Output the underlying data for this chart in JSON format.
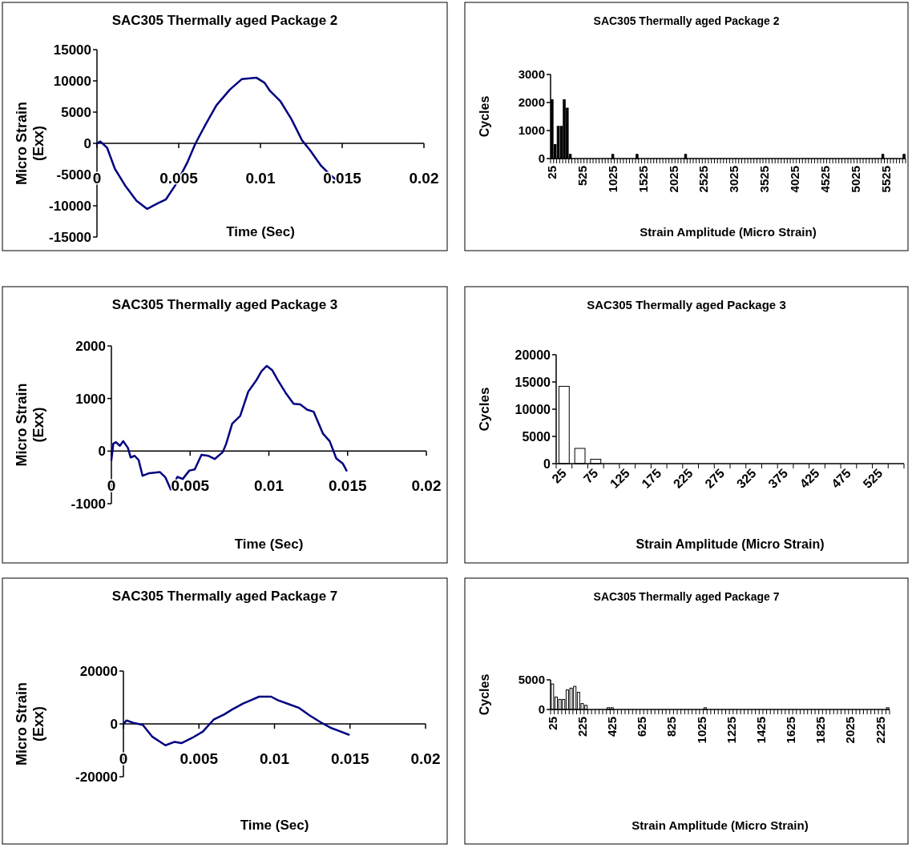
{
  "chart_data": [
    {
      "type": "line",
      "title": "SAC305 Thermally aged Package 2",
      "xlabel": "Time (Sec)",
      "ylabel": "Micro Strain (Exx)",
      "xlim": [
        0,
        0.02
      ],
      "xticks": [
        0,
        0.005,
        0.01,
        0.015,
        0.02
      ],
      "ylim": [
        -15000,
        15000
      ],
      "yticks": [
        -15000,
        -10000,
        -5000,
        0,
        5000,
        10000,
        15000
      ],
      "series": [
        {
          "color": "#000080",
          "x": [
            0,
            0.0002,
            0.00062,
            0.0011,
            0.00176,
            0.00242,
            0.00307,
            0.00372,
            0.00421,
            0.00487,
            0.00552,
            0.00601,
            0.00666,
            0.00731,
            0.00813,
            0.00887,
            0.00976,
            0.01025,
            0.01058,
            0.01123,
            0.01189,
            0.01254,
            0.01303,
            0.01368,
            0.01433,
            0.0149
          ],
          "values": [
            0,
            300,
            -700,
            -4100,
            -6900,
            -9200,
            -10500,
            -9600,
            -9000,
            -6400,
            -3100,
            -100,
            3100,
            6100,
            8600,
            10300,
            10500,
            9700,
            8400,
            6700,
            3900,
            500,
            -1100,
            -3500,
            -5200,
            -6400
          ]
        }
      ]
    },
    {
      "type": "bar",
      "title": "SAC305 Thermally aged Package 2",
      "xlabel": "Strain Amplitude (Micro Strain)",
      "ylabel": "Cycles",
      "ylim": [
        0,
        3000
      ],
      "yticks": [
        0,
        1000,
        2000,
        3000
      ],
      "color": "#000000",
      "categories": [
        "25",
        null,
        null,
        null,
        null,
        null,
        null,
        null,
        null,
        null,
        "525",
        null,
        null,
        null,
        null,
        null,
        null,
        null,
        null,
        null,
        "1025",
        null,
        null,
        null,
        null,
        null,
        null,
        null,
        null,
        null,
        "1525",
        null,
        null,
        null,
        null,
        null,
        null,
        null,
        null,
        null,
        "2025",
        null,
        null,
        null,
        null,
        null,
        null,
        null,
        null,
        null,
        "2525",
        null,
        null,
        null,
        null,
        null,
        null,
        null,
        null,
        null,
        "3025",
        null,
        null,
        null,
        null,
        null,
        null,
        null,
        null,
        null,
        "3525",
        null,
        null,
        null,
        null,
        null,
        null,
        null,
        null,
        null,
        "4025",
        null,
        null,
        null,
        null,
        null,
        null,
        null,
        null,
        null,
        "4525",
        null,
        null,
        null,
        null,
        null,
        null,
        null,
        null,
        null,
        "5025",
        null,
        null,
        null,
        null,
        null,
        null,
        null,
        null,
        null,
        "5525",
        null,
        null,
        null,
        null,
        null,
        null
      ],
      "values": [
        2100,
        500,
        1150,
        1150,
        2100,
        1800,
        150,
        0,
        0,
        0,
        0,
        0,
        0,
        0,
        0,
        0,
        0,
        0,
        0,
        0,
        150,
        0,
        0,
        0,
        0,
        0,
        0,
        0,
        150,
        0,
        0,
        0,
        0,
        0,
        0,
        0,
        0,
        0,
        0,
        0,
        0,
        0,
        0,
        0,
        150,
        0,
        0,
        0,
        0,
        0,
        0,
        0,
        0,
        0,
        0,
        0,
        0,
        0,
        0,
        0,
        0,
        0,
        0,
        0,
        0,
        0,
        0,
        0,
        0,
        0,
        0,
        0,
        0,
        0,
        0,
        0,
        0,
        0,
        0,
        0,
        0,
        0,
        0,
        0,
        0,
        0,
        0,
        0,
        0,
        0,
        0,
        0,
        0,
        0,
        0,
        0,
        0,
        0,
        0,
        0,
        0,
        0,
        0,
        0,
        0,
        0,
        0,
        0,
        0,
        150,
        0,
        0,
        0,
        0,
        0,
        0,
        150
      ]
    },
    {
      "type": "line",
      "title": "SAC305 Thermally aged Package 3",
      "xlabel": "Time (Sec)",
      "ylabel": "Micro Strain (Exx)",
      "xlim": [
        0,
        0.02
      ],
      "xticks": [
        0,
        0.005,
        0.01,
        0.015,
        0.02
      ],
      "ylim": [
        -1000,
        2000
      ],
      "yticks": [
        -1000,
        0,
        1000,
        2000
      ],
      "series": [
        {
          "color": "#000080",
          "x": [
            0,
            0.00012,
            0.00029,
            0.00054,
            0.00075,
            0.00105,
            0.00122,
            0.00148,
            0.00173,
            0.00198,
            0.0024,
            0.00309,
            0.00343,
            0.00377,
            0.00419,
            0.00453,
            0.00495,
            0.00529,
            0.00572,
            0.00614,
            0.00656,
            0.00707,
            0.00729,
            0.00767,
            0.00818,
            0.00869,
            0.00919,
            0.00953,
            0.00987,
            0.01021,
            0.01055,
            0.01106,
            0.01157,
            0.01199,
            0.01242,
            0.01284,
            0.0131,
            0.01344,
            0.01386,
            0.01428,
            0.0147,
            0.01493
          ],
          "values": [
            -170,
            140,
            170,
            100,
            190,
            60,
            -120,
            -90,
            -170,
            -470,
            -420,
            -400,
            -500,
            -730,
            -490,
            -530,
            -370,
            -350,
            -70,
            -90,
            -150,
            -20,
            140,
            520,
            670,
            1130,
            1340,
            1520,
            1620,
            1540,
            1360,
            1110,
            900,
            890,
            790,
            750,
            570,
            330,
            190,
            -140,
            -240,
            -370
          ]
        }
      ]
    },
    {
      "type": "bar",
      "title": "SAC305 Thermally aged Package 3",
      "xlabel": "Strain Amplitude (Micro Strain)",
      "ylabel": "Cycles",
      "ylim": [
        0,
        20000
      ],
      "yticks": [
        0,
        5000,
        10000,
        15000,
        20000
      ],
      "color": "#ffffff",
      "categories": [
        "25",
        null,
        "75",
        null,
        "125",
        null,
        "175",
        null,
        "225",
        null,
        "275",
        null,
        "325",
        null,
        "375",
        null,
        "425",
        null,
        "475",
        null,
        "525",
        null
      ],
      "values": [
        14200,
        2800,
        800,
        0,
        0,
        0,
        0,
        0,
        0,
        0,
        0,
        0,
        0,
        0,
        0,
        0,
        0,
        0,
        0,
        0,
        0,
        0
      ]
    },
    {
      "type": "line",
      "title": "SAC305 Thermally aged Package 7",
      "xlabel": "Time (Sec)",
      "ylabel": "Micro Strain (Exx)",
      "xlim": [
        0,
        0.02
      ],
      "xticks": [
        0,
        0.005,
        0.01,
        0.015,
        0.02
      ],
      "ylim": [
        -20000,
        20000
      ],
      "yticks": [
        -20000,
        0,
        20000
      ],
      "series": [
        {
          "color": "#000080",
          "x": [
            0,
            0.00021,
            0.00066,
            0.00128,
            0.0019,
            0.00278,
            0.0034,
            0.00384,
            0.00455,
            0.00526,
            0.00597,
            0.00668,
            0.00721,
            0.00792,
            0.00845,
            0.00898,
            0.00978,
            0.01022,
            0.01093,
            0.01164,
            0.01235,
            0.01306,
            0.01377,
            0.01439,
            0.01492
          ],
          "values": [
            0,
            1300,
            400,
            -400,
            -4800,
            -8100,
            -6800,
            -7300,
            -5300,
            -2900,
            1600,
            3600,
            5500,
            7700,
            9000,
            10300,
            10300,
            9000,
            7500,
            6000,
            3100,
            600,
            -1600,
            -2900,
            -4100
          ]
        }
      ]
    },
    {
      "type": "bar",
      "title": "SAC305 Thermally aged Package 7",
      "xlabel": "Strain Amplitude (Micro Strain)",
      "ylabel": "Cycles",
      "ylim": [
        0,
        5000
      ],
      "yticks": [
        0,
        5000
      ],
      "color": "#ffffff",
      "categories": [
        "25",
        null,
        null,
        null,
        null,
        null,
        null,
        null,
        "225",
        null,
        null,
        null,
        null,
        null,
        null,
        null,
        "425",
        null,
        null,
        null,
        null,
        null,
        null,
        null,
        "625",
        null,
        null,
        null,
        null,
        null,
        null,
        null,
        "825",
        null,
        null,
        null,
        null,
        null,
        null,
        null,
        "1025",
        null,
        null,
        null,
        null,
        null,
        null,
        null,
        "1225",
        null,
        null,
        null,
        null,
        null,
        null,
        null,
        "1425",
        null,
        null,
        null,
        null,
        null,
        null,
        null,
        "1625",
        null,
        null,
        null,
        null,
        null,
        null,
        null,
        "1825",
        null,
        null,
        null,
        null,
        null,
        null,
        null,
        "2025",
        null,
        null,
        null,
        null,
        null,
        null,
        null,
        "2225",
        null,
        null
      ],
      "values": [
        4300,
        2100,
        1700,
        1700,
        3300,
        3600,
        3900,
        2900,
        1000,
        700,
        0,
        0,
        0,
        0,
        0,
        300,
        300,
        0,
        0,
        0,
        0,
        0,
        0,
        0,
        0,
        0,
        0,
        0,
        0,
        0,
        0,
        0,
        0,
        0,
        0,
        0,
        0,
        0,
        0,
        0,
        0,
        300,
        0,
        0,
        0,
        0,
        0,
        0,
        0,
        0,
        0,
        0,
        0,
        0,
        0,
        0,
        0,
        0,
        0,
        0,
        0,
        0,
        0,
        0,
        0,
        0,
        0,
        0,
        0,
        0,
        0,
        0,
        0,
        0,
        0,
        0,
        0,
        0,
        0,
        0,
        0,
        0,
        0,
        0,
        0,
        0,
        0,
        0,
        0,
        0,
        300
      ]
    }
  ]
}
